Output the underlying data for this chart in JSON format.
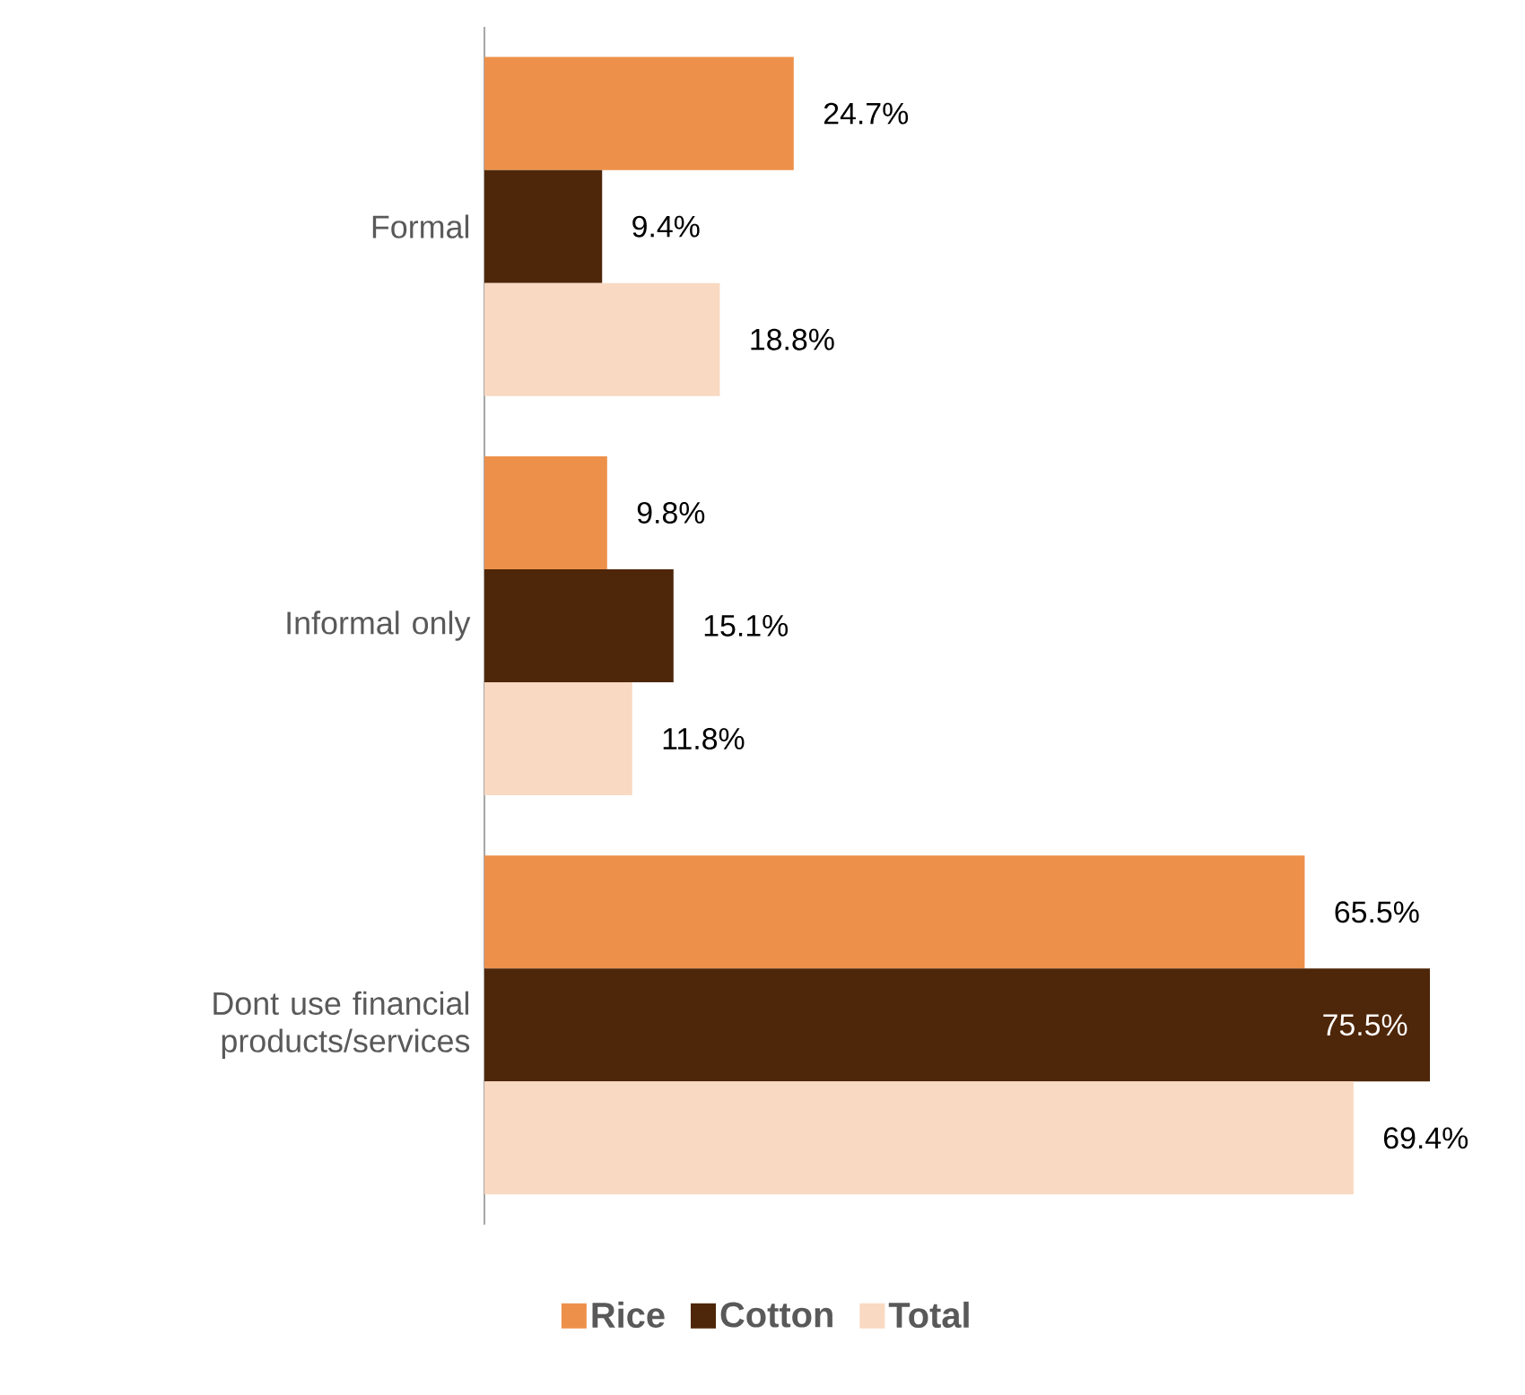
{
  "chart_data": {
    "type": "bar",
    "orientation": "horizontal",
    "categories": [
      "Formal",
      "Informal only",
      "Dont use financial products/services"
    ],
    "series": [
      {
        "name": "Rice",
        "color": "#ed914a",
        "values": [
          24.7,
          9.8,
          65.5
        ],
        "value_labels": [
          "24.7%",
          "9.8%",
          "65.5%"
        ]
      },
      {
        "name": "Cotton",
        "color": "#4e2609",
        "values": [
          9.4,
          15.1,
          75.5
        ],
        "value_labels": [
          "9.4%",
          "15.1%",
          "75.5%"
        ]
      },
      {
        "name": "Total",
        "color": "#f9d9c2",
        "values": [
          18.8,
          11.8,
          69.4
        ],
        "value_labels": [
          "18.8%",
          "11.8%",
          "69.4%"
        ]
      }
    ],
    "legend": "bottom"
  }
}
